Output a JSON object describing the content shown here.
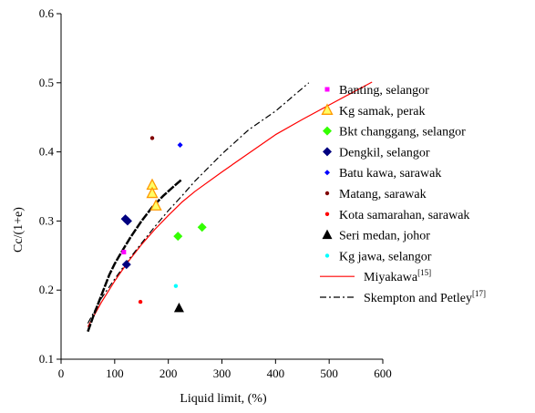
{
  "chart_data": {
    "type": "scatter",
    "xlabel": "Liquid limit, (%)",
    "ylabel": "Cc/(1+e)",
    "xlim": [
      0,
      600
    ],
    "ylim": [
      0.1,
      0.6
    ],
    "x_ticks": [
      "0",
      "100",
      "200",
      "300",
      "400",
      "500",
      "600"
    ],
    "y_ticks": [
      "0.1",
      "0.2",
      "0.3",
      "0.4",
      "0.5",
      "0.6"
    ],
    "grid": false,
    "legend_position": "right",
    "series": [
      {
        "name": "Banting, selangor",
        "marker": "square",
        "color": "#ff00ff",
        "points": [
          [
            117,
            0.255
          ]
        ]
      },
      {
        "name": "Kg samak, perak",
        "marker": "triangle-open",
        "color": "#ff9900",
        "points": [
          [
            170,
            0.352
          ],
          [
            170,
            0.34
          ],
          [
            177,
            0.322
          ]
        ]
      },
      {
        "name": "Bkt changgang, selangor",
        "marker": "diamond",
        "color": "#33ff00",
        "points": [
          [
            218,
            0.278
          ],
          [
            263,
            0.291
          ]
        ]
      },
      {
        "name": "Dengkil, selangor",
        "marker": "diamond",
        "color": "#000080",
        "points": [
          [
            120,
            0.303
          ],
          [
            124,
            0.3
          ],
          [
            122,
            0.237
          ]
        ]
      },
      {
        "name": "Batu kawa, sarawak",
        "marker": "diamond-small",
        "color": "#0000ff",
        "points": [
          [
            222,
            0.41
          ]
        ]
      },
      {
        "name": "Matang, sarawak",
        "marker": "circle",
        "color": "#800000",
        "points": [
          [
            170,
            0.42
          ]
        ]
      },
      {
        "name": "Kota samarahan, sarawak",
        "marker": "circle",
        "color": "#ff0000",
        "points": [
          [
            148,
            0.183
          ]
        ]
      },
      {
        "name": "Seri medan, johor",
        "marker": "triangle-filled",
        "color": "#000000",
        "points": [
          [
            220,
            0.174
          ]
        ]
      },
      {
        "name": "Kg jawa, selangor",
        "marker": "circle",
        "color": "#00ffff",
        "points": [
          [
            214,
            0.206
          ]
        ]
      }
    ],
    "lines": [
      {
        "name": "Miyakawa",
        "ref": "[15]",
        "style": "solid",
        "color": "#ff0000",
        "width": 1.2,
        "points": [
          [
            50,
            0.147
          ],
          [
            75,
            0.182
          ],
          [
            100,
            0.213
          ],
          [
            125,
            0.241
          ],
          [
            150,
            0.266
          ],
          [
            175,
            0.288
          ],
          [
            200,
            0.308
          ],
          [
            225,
            0.327
          ],
          [
            250,
            0.343
          ],
          [
            300,
            0.371
          ],
          [
            350,
            0.398
          ],
          [
            400,
            0.425
          ],
          [
            450,
            0.447
          ],
          [
            500,
            0.468
          ],
          [
            580,
            0.501
          ]
        ]
      },
      {
        "name": "Skempton and Petley",
        "ref": "[17]",
        "style": "dashdot",
        "color": "#000000",
        "width": 1.2,
        "points": [
          [
            50,
            0.152
          ],
          [
            75,
            0.188
          ],
          [
            100,
            0.216
          ],
          [
            125,
            0.243
          ],
          [
            150,
            0.268
          ],
          [
            175,
            0.292
          ],
          [
            200,
            0.315
          ],
          [
            225,
            0.336
          ],
          [
            250,
            0.358
          ],
          [
            300,
            0.397
          ],
          [
            350,
            0.432
          ],
          [
            400,
            0.459
          ],
          [
            462,
            0.5
          ]
        ]
      },
      {
        "name": "",
        "ref": "",
        "style": "thick",
        "color": "#000000",
        "width": 2.5,
        "legend": false,
        "points": [
          [
            50,
            0.14
          ],
          [
            60,
            0.162
          ],
          [
            75,
            0.192
          ],
          [
            90,
            0.222
          ],
          [
            100,
            0.238
          ],
          [
            115,
            0.258
          ],
          [
            130,
            0.277
          ],
          [
            150,
            0.3
          ],
          [
            170,
            0.32
          ],
          [
            190,
            0.336
          ],
          [
            210,
            0.35
          ],
          [
            225,
            0.36
          ]
        ]
      }
    ]
  }
}
